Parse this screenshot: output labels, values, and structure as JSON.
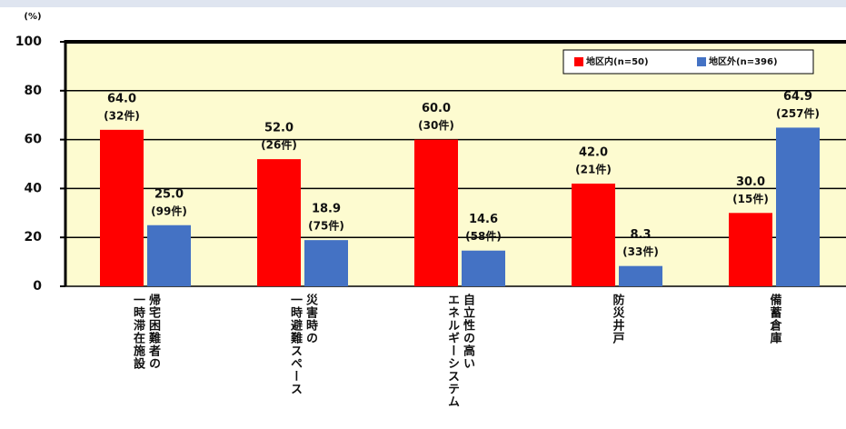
{
  "chart_data": {
    "type": "bar",
    "y_label": "(%)",
    "categories": [
      "帰宅困難者の\n一時滞在施設",
      "災害時の\n一時避難スペース",
      "自立性の高い\nエネルギーシステム",
      "防災井戸",
      "備蓄倉庫"
    ],
    "series": [
      {
        "name": "地区内(n=50)",
        "color": "#ff0000",
        "values": [
          64.0,
          52.0,
          60.0,
          42.0,
          30.0
        ],
        "value_labels": [
          "64.0",
          "52.0",
          "60.0",
          "42.0",
          "30.0"
        ],
        "count_labels": [
          "(32件)",
          "(26件)",
          "(30件)",
          "(21件)",
          "(15件)"
        ]
      },
      {
        "name": "地区外(n=396)",
        "color": "#4472c4",
        "values": [
          25.0,
          18.9,
          14.6,
          8.3,
          64.9
        ],
        "value_labels": [
          "25.0",
          "18.9",
          "14.6",
          "8.3",
          "64.9"
        ],
        "count_labels": [
          "(99件)",
          "(75件)",
          "(58件)",
          "(33件)",
          "(257件)"
        ]
      }
    ],
    "ylim": [
      0,
      100
    ],
    "yticks": [
      0,
      20,
      40,
      60,
      80,
      100
    ],
    "grid": true,
    "plot_color": "#fdfbd0",
    "legend": "upper right"
  }
}
